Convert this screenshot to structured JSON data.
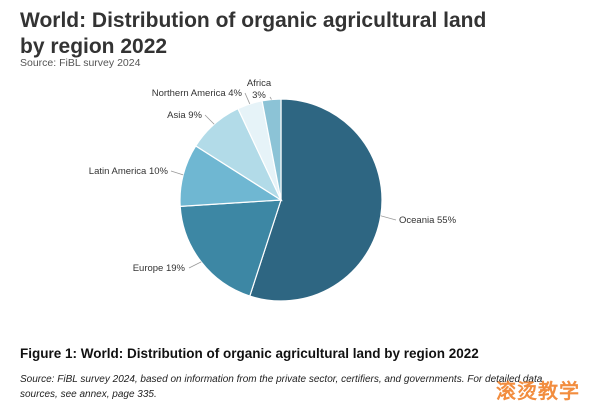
{
  "chart_data": {
    "type": "pie",
    "title": "World: Distribution of organic agricultural land by region 2022",
    "source": "Source: FiBL survey 2024",
    "slices": [
      {
        "name": "Oceania",
        "value": 55,
        "label": "Oceania 55%",
        "color": "#2e6682"
      },
      {
        "name": "Europe",
        "value": 19,
        "label": "Europe 19%",
        "color": "#3d87a4"
      },
      {
        "name": "Latin America",
        "value": 10,
        "label": "Latin America 10%",
        "color": "#6fb7d2"
      },
      {
        "name": "Asia",
        "value": 9,
        "label": "Asia 9%",
        "color": "#b2dbe8"
      },
      {
        "name": "Northern America",
        "value": 4,
        "label": "Northern America 4%",
        "color": "#e6f3f8"
      },
      {
        "name": "Africa",
        "value": 3,
        "label_lines": [
          "Africa",
          "3%"
        ],
        "color": "#8cc3d6"
      }
    ]
  },
  "figure": {
    "caption": "Figure 1: World: Distribution of organic agricultural land by region 2022",
    "note": "Source: FiBL survey 2024, based on information from the private sector, certifiers, and governments. For detailed data sources, see annex, page 335."
  },
  "watermark": "滚烫教学"
}
